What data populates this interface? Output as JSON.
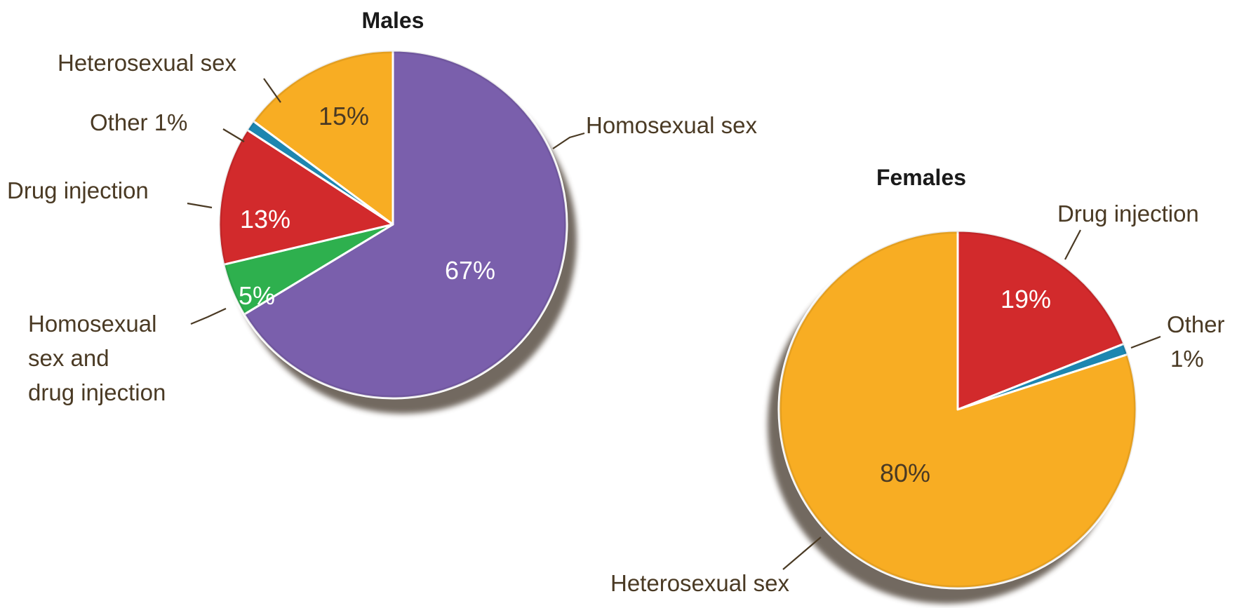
{
  "chart_data": [
    {
      "type": "pie",
      "title": "Males",
      "slices": [
        {
          "label": "Homosexual sex",
          "value": 67,
          "value_label": "67%",
          "color": "#7a5fac",
          "text_color": "#ffffff",
          "callout": [
            "Homosexual sex"
          ]
        },
        {
          "label": "Homosexual sex and drug injection",
          "value": 5,
          "value_label": "5%",
          "color": "#2eb04e",
          "text_color": "#ffffff",
          "callout": [
            "Homosexual",
            "sex and",
            "drug injection"
          ]
        },
        {
          "label": "Drug injection",
          "value": 13,
          "value_label": "13%",
          "color": "#d22a2c",
          "text_color": "#ffffff",
          "callout": [
            "Drug injection"
          ]
        },
        {
          "label": "Other",
          "value": 1,
          "value_label": "",
          "color": "#1d86b0",
          "text_color": "#ffffff",
          "callout": [
            "Other 1%"
          ]
        },
        {
          "label": "Heterosexual sex",
          "value": 15,
          "value_label": "15%",
          "color": "#f8ad23",
          "text_color": "#4a3a24",
          "callout": [
            "Heterosexual sex"
          ]
        }
      ]
    },
    {
      "type": "pie",
      "title": "Females",
      "slices": [
        {
          "label": "Drug injection",
          "value": 19,
          "value_label": "19%",
          "color": "#d22a2c",
          "text_color": "#ffffff",
          "callout": [
            "Drug injection"
          ]
        },
        {
          "label": "Other",
          "value": 1,
          "value_label": "",
          "color": "#1d86b0",
          "text_color": "#ffffff",
          "callout": [
            "Other",
            "1%"
          ]
        },
        {
          "label": "Heterosexual sex",
          "value": 80,
          "value_label": "80%",
          "color": "#f8ad23",
          "text_color": "#4a3a24",
          "callout": [
            "Heterosexual sex"
          ]
        }
      ]
    }
  ]
}
